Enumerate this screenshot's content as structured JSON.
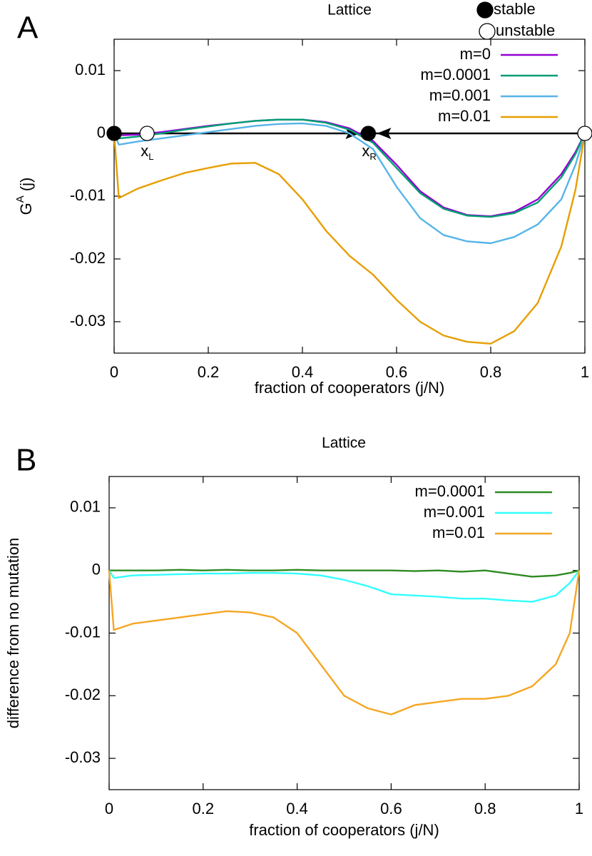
{
  "chart_data": [
    {
      "type": "line",
      "panel_label": "A",
      "title": "Lattice",
      "xlabel": "fraction of cooperators (j/N)",
      "ylabel": {
        "base": "G",
        "sup": "A",
        "rest": " (j)"
      },
      "xlim": [
        0,
        1
      ],
      "xticks": [
        0,
        0.2,
        0.4,
        0.6,
        0.8,
        1
      ],
      "ylim": [
        -0.035,
        0.015
      ],
      "yticks": [
        0.01,
        0,
        -0.01,
        -0.02,
        -0.03
      ],
      "legend": "top-right",
      "x": [
        0,
        0.01,
        0.05,
        0.1,
        0.15,
        0.2,
        0.25,
        0.3,
        0.35,
        0.4,
        0.45,
        0.5,
        0.55,
        0.6,
        0.65,
        0.7,
        0.75,
        0.8,
        0.85,
        0.9,
        0.95,
        0.98,
        1
      ],
      "series": [
        {
          "name": "m=0",
          "color": "#9400d3",
          "values": [
            0,
            -0.0003,
            -0.0002,
            0.0002,
            0.0007,
            0.0012,
            0.0016,
            0.002,
            0.0022,
            0.0022,
            0.0018,
            0.0008,
            -0.0012,
            -0.005,
            -0.0092,
            -0.0118,
            -0.013,
            -0.0132,
            -0.0125,
            -0.0105,
            -0.0065,
            -0.003,
            0
          ]
        },
        {
          "name": "m=0.0001",
          "color": "#009e73",
          "values": [
            0,
            -0.0008,
            -0.0005,
            0,
            0.0006,
            0.0011,
            0.0016,
            0.002,
            0.0022,
            0.0022,
            0.0017,
            0.0006,
            -0.0015,
            -0.0055,
            -0.0095,
            -0.012,
            -0.0131,
            -0.0133,
            -0.0127,
            -0.011,
            -0.007,
            -0.0033,
            0
          ]
        },
        {
          "name": "m=0.001",
          "color": "#56b4e9",
          "values": [
            0,
            -0.0018,
            -0.0013,
            -0.0008,
            -0.0003,
            0.0002,
            0.0007,
            0.0012,
            0.0015,
            0.0016,
            0.0012,
            0,
            -0.0025,
            -0.0085,
            -0.0135,
            -0.0162,
            -0.0172,
            -0.0175,
            -0.0165,
            -0.0145,
            -0.0105,
            -0.005,
            0
          ]
        },
        {
          "name": "m=0.01",
          "color": "#e69f00",
          "values": [
            0,
            -0.0103,
            -0.0088,
            -0.0075,
            -0.0063,
            -0.0055,
            -0.0048,
            -0.0047,
            -0.0065,
            -0.0105,
            -0.0155,
            -0.0195,
            -0.0225,
            -0.0265,
            -0.03,
            -0.0322,
            -0.0332,
            -0.0335,
            -0.0315,
            -0.027,
            -0.018,
            -0.009,
            0
          ]
        }
      ],
      "stable_points": {
        "name": "stable",
        "x": [
          0,
          0.54
        ],
        "y": [
          0,
          0
        ],
        "labels": [
          null,
          {
            "base": "x",
            "sub": "R"
          }
        ]
      },
      "unstable_points": {
        "name": "unstable",
        "x": [
          0.07,
          1
        ],
        "y": [
          0,
          0
        ],
        "labels": [
          {
            "base": "x",
            "sub": "L"
          },
          null
        ]
      }
    },
    {
      "type": "line",
      "panel_label": "B",
      "title": "Lattice",
      "xlabel": "fraction of cooperators (j/N)",
      "ylabel": {
        "base": "difference from no mutation"
      },
      "xlim": [
        0,
        1
      ],
      "xticks": [
        0,
        0.2,
        0.4,
        0.6,
        0.8,
        1
      ],
      "ylim": [
        -0.035,
        0.015
      ],
      "yticks": [
        0.01,
        0,
        -0.01,
        -0.02,
        -0.03
      ],
      "legend": "top-right",
      "x": [
        0,
        0.01,
        0.05,
        0.1,
        0.15,
        0.2,
        0.25,
        0.3,
        0.35,
        0.4,
        0.45,
        0.5,
        0.55,
        0.6,
        0.65,
        0.7,
        0.75,
        0.8,
        0.85,
        0.9,
        0.95,
        0.98,
        1
      ],
      "series": [
        {
          "name": "m=0.0001",
          "color": "#2e8b22",
          "values": [
            0,
            0,
            0,
            0,
            0.0001,
            0,
            0.0001,
            0,
            0,
            0.0001,
            0,
            0,
            0,
            0,
            -0.0001,
            0,
            -0.0002,
            0,
            -0.0005,
            -0.001,
            -0.0008,
            -0.0004,
            0
          ]
        },
        {
          "name": "m=0.001",
          "color": "#33ffff",
          "values": [
            0,
            -0.0012,
            -0.0008,
            -0.0007,
            -0.0006,
            -0.0005,
            -0.0005,
            -0.0004,
            -0.0004,
            -0.0005,
            -0.0008,
            -0.0015,
            -0.0025,
            -0.0038,
            -0.004,
            -0.0042,
            -0.0045,
            -0.0045,
            -0.0048,
            -0.005,
            -0.004,
            -0.002,
            0
          ]
        },
        {
          "name": "m=0.01",
          "color": "#f5a623",
          "values": [
            0,
            -0.0095,
            -0.0085,
            -0.008,
            -0.0075,
            -0.007,
            -0.0065,
            -0.0067,
            -0.0075,
            -0.01,
            -0.015,
            -0.02,
            -0.022,
            -0.023,
            -0.0215,
            -0.021,
            -0.0205,
            -0.0205,
            -0.02,
            -0.0185,
            -0.015,
            -0.01,
            0
          ]
        }
      ]
    }
  ]
}
